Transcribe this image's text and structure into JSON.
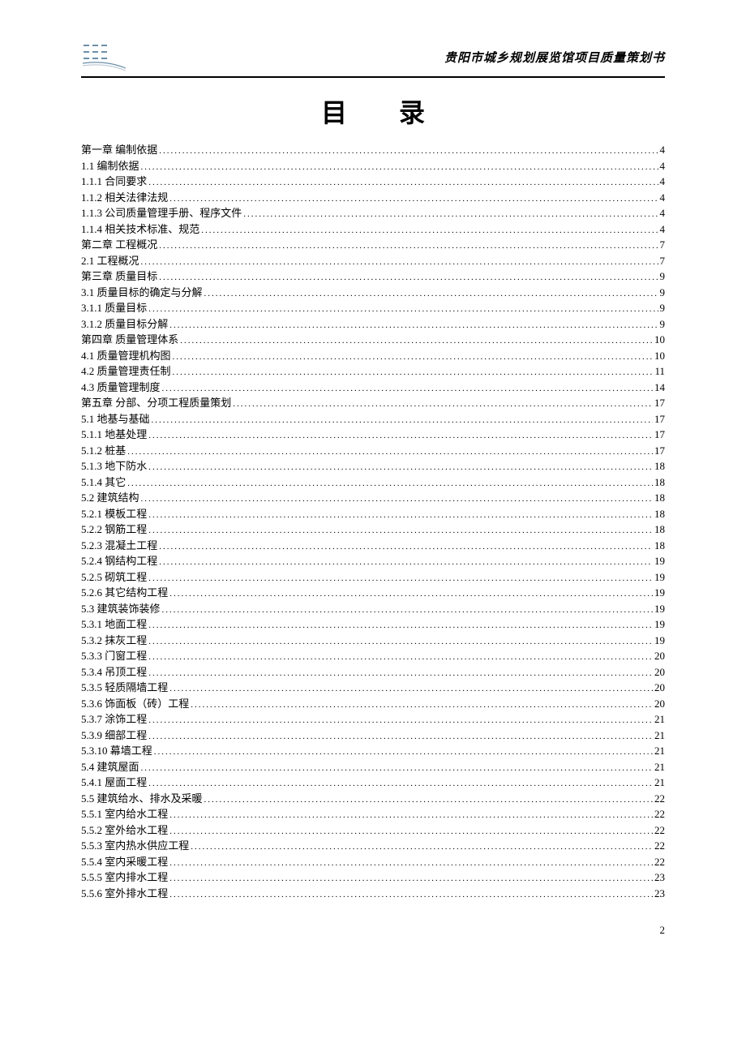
{
  "header": {
    "title": "贵阳市城乡规划展览馆项目质量策划书"
  },
  "title": "目 录",
  "toc": [
    {
      "label": "第一章  编制依据",
      "page": "4"
    },
    {
      "label": "1.1  编制依据",
      "page": "4"
    },
    {
      "label": "1.1.1  合同要求",
      "page": "4"
    },
    {
      "label": "1.1.2  相关法律法规",
      "page": "4"
    },
    {
      "label": "1.1.3  公司质量管理手册、程序文件",
      "page": "4"
    },
    {
      "label": "1.1.4  相关技术标准、规范",
      "page": "4"
    },
    {
      "label": "第二章  工程概况",
      "page": "7"
    },
    {
      "label": "2.1  工程概况",
      "page": "7"
    },
    {
      "label": "第三章  质量目标",
      "page": "9"
    },
    {
      "label": "3.1  质量目标的确定与分解",
      "page": "9"
    },
    {
      "label": "3.1.1  质量目标",
      "page": "9"
    },
    {
      "label": "3.1.2  质量目标分解",
      "page": "9"
    },
    {
      "label": "第四章  质量管理体系",
      "page": "10"
    },
    {
      "label": "4.1  质量管理机构图",
      "page": "10"
    },
    {
      "label": "4.2  质量管理责任制",
      "page": "11"
    },
    {
      "label": "4.3  质量管理制度",
      "page": "14"
    },
    {
      "label": "第五章  分部、分项工程质量策划",
      "page": "17"
    },
    {
      "label": "5.1  地基与基础",
      "page": "17"
    },
    {
      "label": "5.1.1  地基处理",
      "page": "17"
    },
    {
      "label": "5.1.2  桩基",
      "page": "17"
    },
    {
      "label": "5.1.3  地下防水",
      "page": "18"
    },
    {
      "label": "5.1.4  其它",
      "page": "18"
    },
    {
      "label": "5.2  建筑结构",
      "page": "18"
    },
    {
      "label": "5.2.1  模板工程",
      "page": "18"
    },
    {
      "label": "5.2.2  钢筋工程",
      "page": "18"
    },
    {
      "label": "5.2.3  混凝土工程",
      "page": "18"
    },
    {
      "label": "5.2.4  钢结构工程",
      "page": "19"
    },
    {
      "label": "5.2.5  砌筑工程",
      "page": "19"
    },
    {
      "label": "5.2.6  其它结构工程",
      "page": "19"
    },
    {
      "label": "5.3  建筑装饰装修",
      "page": "19"
    },
    {
      "label": "5.3.1  地面工程",
      "page": "19"
    },
    {
      "label": "5.3.2  抹灰工程",
      "page": "19"
    },
    {
      "label": "5.3.3  门窗工程",
      "page": "20"
    },
    {
      "label": "5.3.4  吊顶工程",
      "page": "20"
    },
    {
      "label": "5.3.5  轻质隔墙工程",
      "page": "20"
    },
    {
      "label": "5.3.6  饰面板（砖）工程",
      "page": "20"
    },
    {
      "label": "5.3.7  涂饰工程",
      "page": "21"
    },
    {
      "label": "5.3.9  细部工程",
      "page": "21"
    },
    {
      "label": "5.3.10  幕墙工程",
      "page": "21"
    },
    {
      "label": "5.4  建筑屋面",
      "page": "21"
    },
    {
      "label": "5.4.1  屋面工程",
      "page": "21"
    },
    {
      "label": "5.5  建筑给水、排水及采暖",
      "page": "22"
    },
    {
      "label": "5.5.1  室内给水工程",
      "page": "22"
    },
    {
      "label": "5.5.2  室外给水工程",
      "page": "22"
    },
    {
      "label": "5.5.3  室内热水供应工程",
      "page": "22"
    },
    {
      "label": "5.5.4  室内采暖工程",
      "page": "22"
    },
    {
      "label": "5.5.5  室内排水工程",
      "page": "23"
    },
    {
      "label": "5.5.6  室外排水工程",
      "page": "23"
    }
  ],
  "footer": {
    "page": "2"
  }
}
